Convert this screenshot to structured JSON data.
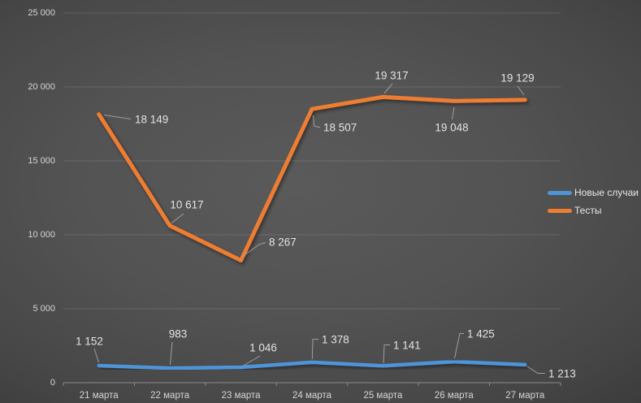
{
  "chart_data": {
    "type": "line",
    "title": "",
    "xlabel": "",
    "ylabel": "",
    "categories": [
      "21 марта",
      "22 марта",
      "23 марта",
      "24 марта",
      "25 марта",
      "26 марта",
      "27 марта"
    ],
    "series": [
      {
        "name": "Новые случаи",
        "color": "#4E94D8",
        "values": [
          1152,
          983,
          1046,
          1378,
          1141,
          1425,
          1213
        ],
        "point_labels": [
          "1 152",
          "983",
          "1 046",
          "1 378",
          "1 141",
          "1 425",
          "1 213"
        ]
      },
      {
        "name": "Тесты",
        "color": "#ED7D31",
        "values": [
          18149,
          10617,
          8267,
          18507,
          19317,
          19048,
          19129
        ],
        "point_labels": [
          "18 149",
          "10 617",
          "8 267",
          "18 507",
          "19 317",
          "19 048",
          "19 129"
        ]
      }
    ],
    "y_axis": {
      "min": 0,
      "max": 25000,
      "step": 5000,
      "tick_labels": [
        "0",
        "5 000",
        "10 000",
        "15 000",
        "20 000",
        "25 000"
      ]
    },
    "legend": {
      "position": "right",
      "entries": [
        "Новые случаи",
        "Тесты"
      ]
    },
    "grid": true,
    "colors": {
      "background_center": "#5a5a5a",
      "background_edge": "#262626",
      "gridline": "rgba(255,255,255,0.13)",
      "axis_line": "#8a8a8a",
      "axis_text": "#d4d4d4",
      "data_label_text": "#e3e3e3",
      "leader_line": "#9e9e9e"
    }
  }
}
